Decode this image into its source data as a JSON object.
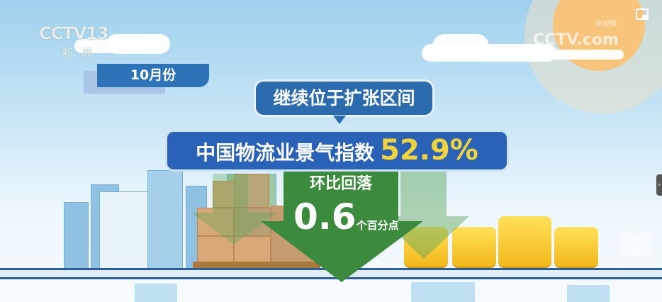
{
  "logo": {
    "channel": "CCTV13",
    "sub": "新闻"
  },
  "watermark": {
    "brand": "CCTV.com",
    "cn": "央视网"
  },
  "month_badge": "10月份",
  "bubble": "继续位于扩张区间",
  "banner": {
    "label": "中国物流业景气指数",
    "value": "52.9%"
  },
  "change": {
    "label": "环比回落",
    "value": "0.6",
    "unit": "个百分点"
  },
  "colors": {
    "banner_blue": "#2a62b7",
    "value_yellow": "#f2d33a",
    "arrow_green": "#3b8a3e",
    "sun": "#f8c37a"
  },
  "player_icons": [
    "screen-cast-icon",
    "side-panel-arrow-icon",
    "picture-in-picture-icon"
  ]
}
